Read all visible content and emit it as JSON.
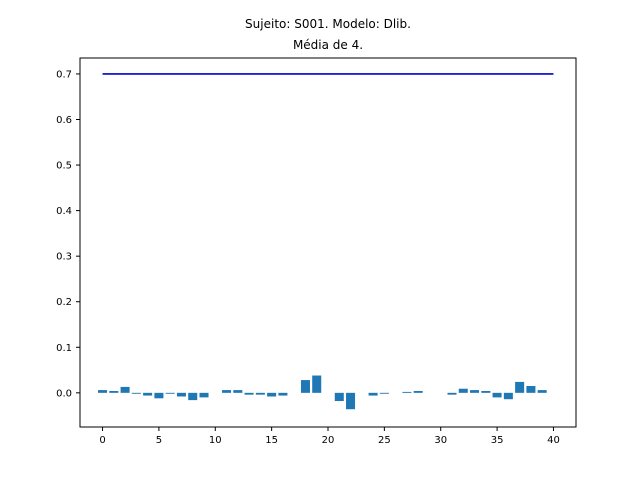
{
  "chart_data": {
    "type": "bar",
    "title_lines": [
      "Sujeito: S001. Modelo: Dlib.",
      "Média de 4."
    ],
    "xlabel": "",
    "ylabel": "",
    "xlim": [
      -2,
      42
    ],
    "ylim": [
      -0.075,
      0.735
    ],
    "xticks": [
      0,
      5,
      10,
      15,
      20,
      25,
      30,
      35,
      40
    ],
    "xtick_labels": [
      "0",
      "5",
      "10",
      "15",
      "20",
      "25",
      "30",
      "35",
      "40"
    ],
    "yticks": [
      0.0,
      0.1,
      0.2,
      0.3,
      0.4,
      0.5,
      0.6,
      0.7
    ],
    "ytick_labels": [
      "0.0",
      "0.1",
      "0.2",
      "0.3",
      "0.4",
      "0.5",
      "0.6",
      "0.7"
    ],
    "grid": false,
    "series": [
      {
        "type": "bar",
        "color": "#1f77b4",
        "x": [
          0,
          1,
          2,
          3,
          4,
          5,
          6,
          7,
          8,
          9,
          10,
          11,
          12,
          13,
          14,
          15,
          16,
          17,
          18,
          19,
          20,
          21,
          22,
          23,
          24,
          25,
          26,
          27,
          28,
          29,
          30,
          31,
          32,
          33,
          34,
          35,
          36,
          37,
          38,
          39,
          40
        ],
        "values": [
          0.006,
          0.004,
          0.013,
          -0.002,
          -0.006,
          -0.012,
          -0.002,
          -0.008,
          -0.016,
          -0.01,
          0.0,
          0.006,
          0.006,
          -0.004,
          -0.004,
          -0.008,
          -0.006,
          0.0,
          0.028,
          0.038,
          0.0,
          -0.018,
          -0.036,
          0.0,
          -0.006,
          -0.002,
          0.0,
          0.002,
          0.004,
          0.0,
          0.0,
          -0.004,
          0.009,
          0.006,
          0.004,
          -0.01,
          -0.014,
          0.024,
          0.015,
          0.006,
          0.0
        ]
      },
      {
        "type": "line",
        "color": "#0000cc",
        "x": [
          0,
          40
        ],
        "values": [
          0.7,
          0.7
        ]
      }
    ]
  }
}
